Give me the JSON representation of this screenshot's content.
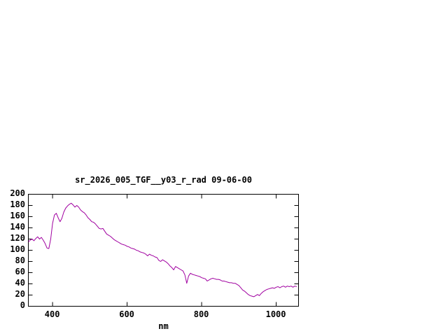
{
  "chart_data": {
    "type": "line",
    "title": "sr_2026_005_TGF__y03_r_rad 09-06-00",
    "xlabel": "nm",
    "ylabel": "",
    "xlim": [
      335,
      1060
    ],
    "ylim": [
      0,
      200
    ],
    "x_ticks": [
      400,
      600,
      800,
      1000
    ],
    "y_ticks": [
      0,
      20,
      40,
      60,
      80,
      100,
      120,
      140,
      160,
      180,
      200
    ],
    "grid": false,
    "legend": "none",
    "line_color": "#a000a0",
    "text_color": "#000000",
    "background_color": "#ffffff",
    "series": [
      {
        "name": "sr_2026_005_TGF__y03_r_rad",
        "x": [
          335,
          340,
          345,
          350,
          355,
          360,
          365,
          370,
          375,
          380,
          385,
          390,
          395,
          400,
          405,
          410,
          415,
          420,
          425,
          430,
          435,
          440,
          445,
          450,
          455,
          460,
          465,
          470,
          475,
          480,
          485,
          490,
          495,
          500,
          505,
          510,
          515,
          520,
          525,
          530,
          535,
          540,
          545,
          550,
          555,
          560,
          565,
          570,
          575,
          580,
          585,
          590,
          595,
          600,
          605,
          610,
          615,
          620,
          625,
          630,
          635,
          640,
          645,
          650,
          655,
          660,
          665,
          670,
          675,
          680,
          685,
          690,
          695,
          700,
          705,
          710,
          715,
          720,
          725,
          730,
          735,
          740,
          745,
          750,
          755,
          760,
          765,
          770,
          775,
          780,
          785,
          790,
          795,
          800,
          805,
          810,
          815,
          820,
          825,
          830,
          835,
          840,
          845,
          850,
          855,
          860,
          865,
          870,
          875,
          880,
          885,
          890,
          895,
          900,
          905,
          910,
          915,
          920,
          925,
          930,
          935,
          940,
          945,
          950,
          955,
          960,
          965,
          970,
          975,
          980,
          985,
          990,
          995,
          1000,
          1005,
          1010,
          1015,
          1020,
          1025,
          1030,
          1035,
          1040,
          1045,
          1050,
          1055
        ],
        "y": [
          115,
          118,
          120,
          117,
          121,
          124,
          120,
          123,
          118,
          112,
          104,
          103,
          120,
          148,
          163,
          166,
          158,
          151,
          157,
          168,
          175,
          179,
          182,
          184,
          181,
          177,
          180,
          177,
          172,
          169,
          167,
          163,
          158,
          155,
          151,
          150,
          147,
          143,
          139,
          138,
          139,
          134,
          129,
          127,
          125,
          122,
          119,
          117,
          115,
          113,
          111,
          110,
          109,
          107,
          106,
          104,
          103,
          102,
          100,
          99,
          97,
          96,
          95,
          93,
          90,
          93,
          91,
          90,
          88,
          87,
          82,
          80,
          83,
          81,
          79,
          76,
          72,
          69,
          65,
          71,
          69,
          67,
          65,
          63,
          56,
          41,
          54,
          59,
          57,
          56,
          55,
          54,
          53,
          51,
          50,
          49,
          45,
          47,
          49,
          50,
          49,
          48,
          48,
          47,
          45,
          45,
          44,
          43,
          42,
          42,
          41,
          41,
          39,
          37,
          33,
          29,
          27,
          24,
          21,
          19,
          18,
          17,
          19,
          21,
          19,
          23,
          26,
          28,
          30,
          31,
          32,
          33,
          32,
          34,
          35,
          33,
          35,
          36,
          34,
          36,
          35,
          36,
          34,
          36,
          35
        ]
      }
    ]
  }
}
